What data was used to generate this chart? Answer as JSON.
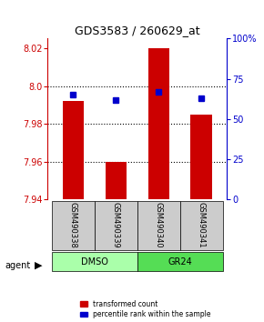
{
  "title": "GDS3583 / 260629_at",
  "samples": [
    "GSM490338",
    "GSM490339",
    "GSM490340",
    "GSM490341"
  ],
  "groups": [
    "DMSO",
    "DMSO",
    "GR24",
    "GR24"
  ],
  "group_labels": [
    "DMSO",
    "GR24"
  ],
  "red_values": [
    7.992,
    7.96,
    8.02,
    7.985
  ],
  "blue_values": [
    65,
    62,
    67,
    63
  ],
  "ylim_left": [
    7.94,
    8.025
  ],
  "ylim_right": [
    0,
    100
  ],
  "yticks_left": [
    7.94,
    7.96,
    7.98,
    8.0,
    8.02
  ],
  "yticks_right": [
    0,
    25,
    50,
    75,
    100
  ],
  "ytick_labels_right": [
    "0",
    "25",
    "50",
    "75",
    "100%"
  ],
  "bar_bottom": 7.94,
  "bar_width": 0.5,
  "red_color": "#cc0000",
  "blue_color": "#0000cc",
  "dmso_color": "#aaffaa",
  "gr24_color": "#55dd55",
  "sample_box_color": "#cccccc",
  "grid_color": "#000000",
  "legend_red": "transformed count",
  "legend_blue": "percentile rank within the sample",
  "agent_label": "agent"
}
